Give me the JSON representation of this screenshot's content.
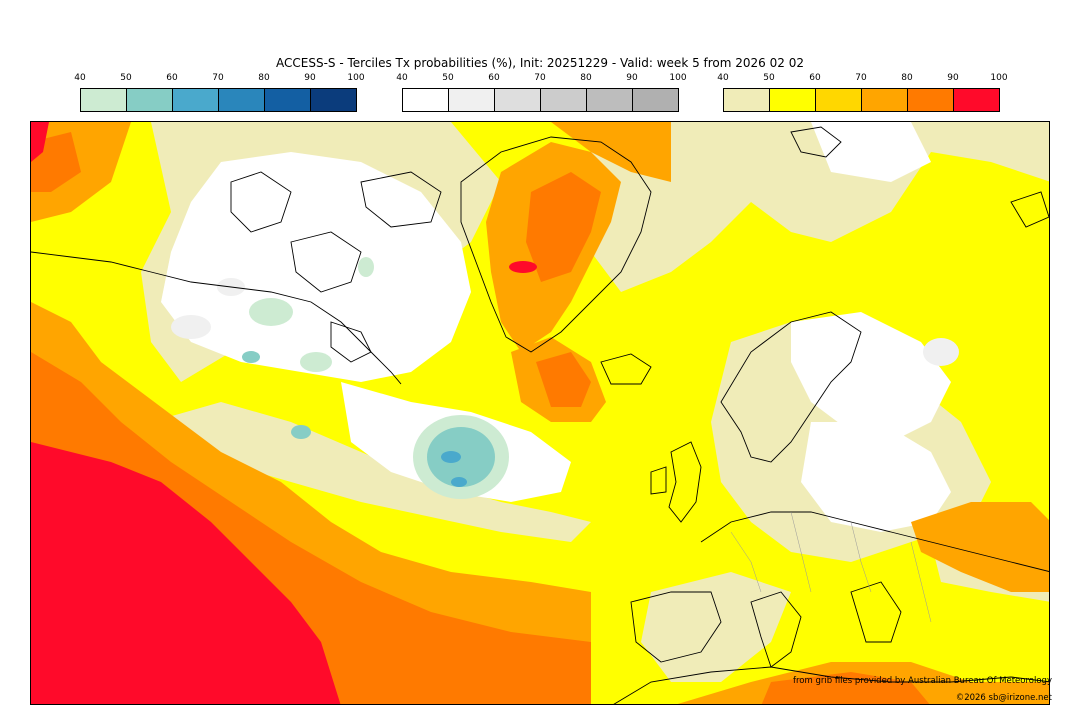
{
  "title": "ACCESS-S - Terciles Tx probabilities (%), Init: 20251229 - Valid: week 5 from 2026 02 02",
  "colorbars": [
    {
      "name": "below",
      "ticks": [
        "40",
        "50",
        "60",
        "70",
        "80",
        "90",
        "100"
      ],
      "colors": [
        "#cdebd2",
        "#86cdc5",
        "#4aa9cc",
        "#2a86bb",
        "#135fa3",
        "#0b3c7c"
      ]
    },
    {
      "name": "normal",
      "ticks": [
        "40",
        "50",
        "60",
        "70",
        "80",
        "90",
        "100"
      ],
      "colors": [
        "#ffffff",
        "#f0f0f0",
        "#dedede",
        "#cccccc",
        "#bdbdbd",
        "#b0b0b0"
      ]
    },
    {
      "name": "above",
      "ticks": [
        "40",
        "50",
        "60",
        "70",
        "80",
        "90",
        "100"
      ],
      "colors": [
        "#f0ecb8",
        "#ffff00",
        "#ffd700",
        "#ffa500",
        "#ff7a00",
        "#ff0a2a"
      ]
    }
  ],
  "credits": {
    "source": "from grib files provided by Australian Bureau Of Meteorology",
    "copyright": "©2026 sb@irizone.net"
  }
}
